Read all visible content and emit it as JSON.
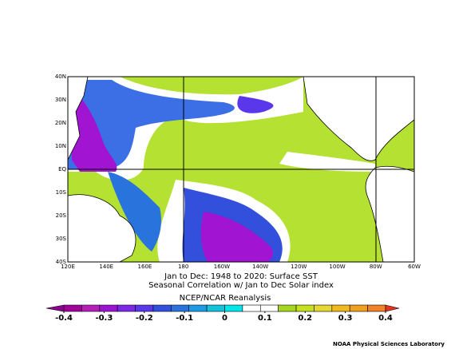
{
  "map": {
    "lon_labels": [
      "120E",
      "140E",
      "160E",
      "180",
      "160W",
      "140W",
      "120W",
      "100W",
      "80W",
      "60W"
    ],
    "lat_labels": [
      "40N",
      "30N",
      "20N",
      "10N",
      "EQ",
      "10S",
      "20S",
      "30S",
      "40S"
    ]
  },
  "caption": [
    "Jan to Dec: 1948 to 2020: Surface SST",
    "Seasonal Correlation w/ Jan to Dec Solar index"
  ],
  "colorbar": {
    "title": "NCEP/NCAR Reanalysis",
    "lim": [
      -0.4,
      0.4
    ],
    "ticks": [
      -0.4,
      -0.3,
      -0.2,
      -0.1,
      0,
      0.1,
      0.2,
      0.3,
      0.4
    ],
    "colors": [
      "#a0009b",
      "#b41eb9",
      "#9b14d2",
      "#7d28e6",
      "#5a37eb",
      "#3250dc",
      "#2873dc",
      "#1e9be6",
      "#14c3dc",
      "#00e6eb",
      "#ffffff",
      "#ffffff",
      "#a5d71e",
      "#c8e11e",
      "#e6d732",
      "#f0b91e",
      "#f0a01e",
      "#f08228"
    ],
    "under_color": "#8c0091",
    "over_color": "#e6321e"
  },
  "credit": "NOAA Physical Sciences Laboratory"
}
